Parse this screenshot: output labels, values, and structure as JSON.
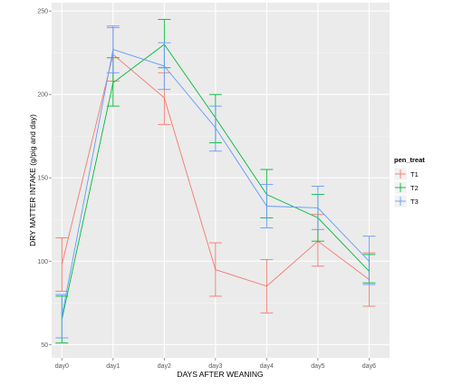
{
  "chart_data": {
    "type": "line",
    "title": "",
    "xlabel": "DAYS AFTER WEANING",
    "ylabel": "DRY MATTER INTAKE (g/pig and day)",
    "categories": [
      "day0",
      "day1",
      "day2",
      "day3",
      "day4",
      "day5",
      "day6"
    ],
    "ylim": [
      42,
      255
    ],
    "yticks": [
      50,
      100,
      150,
      200,
      250
    ],
    "grid": true,
    "error_bars": true,
    "legend": {
      "title": "pen_treat",
      "position": "right"
    },
    "series": [
      {
        "name": "T1",
        "color": "#F8766D",
        "values": [
          98,
          224,
          198,
          95,
          85,
          112,
          89
        ],
        "upper": [
          114,
          240,
          213,
          111,
          101,
          128,
          105
        ],
        "lower": [
          82,
          208,
          182,
          79,
          69,
          97,
          73
        ]
      },
      {
        "name": "T2",
        "color": "#00BA38",
        "values": [
          65,
          207,
          230,
          186,
          140,
          126,
          94
        ],
        "upper": [
          79,
          222,
          245,
          200,
          155,
          140,
          104
        ],
        "lower": [
          51,
          193,
          216,
          171,
          126,
          112,
          87
        ]
      },
      {
        "name": "T3",
        "color": "#619CFF",
        "values": [
          67,
          227,
          217,
          180,
          133,
          132,
          100
        ],
        "upper": [
          80,
          241,
          231,
          193,
          146,
          145,
          115
        ],
        "lower": [
          54,
          213,
          203,
          166,
          120,
          119,
          86
        ]
      }
    ]
  }
}
